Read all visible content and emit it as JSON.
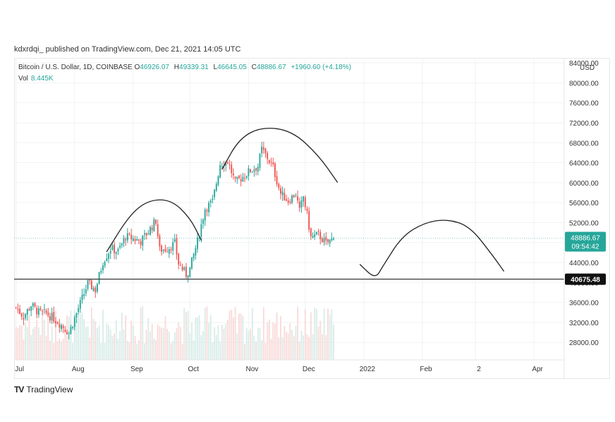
{
  "publisher": "kdxrdqi_ published on TradingView.com, Dec 21, 2021 14:05 UTC",
  "legend": {
    "symbol": "Bitcoin / U.S. Dollar, 1D, COINBASE",
    "open_label": "O",
    "open": "46926.07",
    "high_label": "H",
    "high": "49339.31",
    "low_label": "L",
    "low": "46645.05",
    "close_label": "C",
    "close": "48886.67",
    "change": "+1960.60 (+4.18%)",
    "vol_label": "Vol",
    "vol": "8.445K"
  },
  "brand": {
    "logo": "TV",
    "name": "TradingView"
  },
  "chart_data": {
    "type": "candlestick",
    "y_unit": "USD",
    "ylim": [
      24500,
      85000
    ],
    "y_ticks": [
      "84000.00",
      "80000.00",
      "76000.00",
      "72000.00",
      "68000.00",
      "64000.00",
      "60000.00",
      "56000.00",
      "52000.00",
      "48000.00",
      "44000.00",
      "40000.00",
      "36000.00",
      "32000.00",
      "28000.00"
    ],
    "x_ticks": [
      {
        "label": "Jul",
        "day": 0
      },
      {
        "label": "Aug",
        "day": 31
      },
      {
        "label": "Sep",
        "day": 62
      },
      {
        "label": "Oct",
        "day": 92
      },
      {
        "label": "Nov",
        "day": 123
      },
      {
        "label": "Dec",
        "day": 153
      },
      {
        "label": "2022",
        "day": 184
      },
      {
        "label": "Feb",
        "day": 215
      },
      {
        "label": "2",
        "day": 243
      },
      {
        "label": "Apr",
        "day": 274
      }
    ],
    "x_range_days": [
      -1,
      290
    ],
    "last_price": {
      "value": 48886.67,
      "label": "48886.67",
      "countdown": "09:54:42",
      "color": "#26a69a"
    },
    "horizontal_line": {
      "value": 40675.48,
      "label": "40675.48"
    },
    "candle_colors": {
      "up": "#26a69a",
      "down": "#ef5350"
    },
    "close_path": [
      [
        0,
        35000
      ],
      [
        4,
        33200
      ],
      [
        8,
        35500
      ],
      [
        12,
        34000
      ],
      [
        16,
        33800
      ],
      [
        20,
        32800
      ],
      [
        24,
        31500
      ],
      [
        28,
        29900
      ],
      [
        33,
        34800
      ],
      [
        38,
        39800
      ],
      [
        42,
        38500
      ],
      [
        46,
        44200
      ],
      [
        50,
        46800
      ],
      [
        54,
        46200
      ],
      [
        58,
        49200
      ],
      [
        62,
        48800
      ],
      [
        66,
        48300
      ],
      [
        70,
        50200
      ],
      [
        74,
        52400
      ],
      [
        76,
        46500
      ],
      [
        80,
        46800
      ],
      [
        84,
        47800
      ],
      [
        86,
        43800
      ],
      [
        90,
        41600
      ],
      [
        92,
        42800
      ],
      [
        96,
        48200
      ],
      [
        100,
        54800
      ],
      [
        104,
        56200
      ],
      [
        108,
        63800
      ],
      [
        112,
        64300
      ],
      [
        116,
        60000
      ],
      [
        120,
        61200
      ],
      [
        124,
        62500
      ],
      [
        128,
        63300
      ],
      [
        130,
        66700
      ],
      [
        133,
        65000
      ],
      [
        136,
        63000
      ],
      [
        140,
        57800
      ],
      [
        144,
        56400
      ],
      [
        148,
        57800
      ],
      [
        150,
        54200
      ],
      [
        152,
        57200
      ],
      [
        154,
        53500
      ],
      [
        156,
        49000
      ],
      [
        160,
        49600
      ],
      [
        164,
        47800
      ],
      [
        168,
        48886.67
      ]
    ],
    "volume_max": 22000,
    "drawings": [
      {
        "name": "arc-aug-sep",
        "points": [
          [
            48,
            46200
          ],
          [
            60,
            53500
          ],
          [
            70,
            56500
          ],
          [
            82,
            56600
          ],
          [
            92,
            53000
          ],
          [
            98,
            48500
          ]
        ]
      },
      {
        "name": "arc-oct-nov",
        "points": [
          [
            109,
            62700
          ],
          [
            118,
            68800
          ],
          [
            130,
            71200
          ],
          [
            146,
            70400
          ],
          [
            160,
            65500
          ],
          [
            170,
            60100
          ]
        ]
      },
      {
        "name": "projection-dip",
        "points": [
          [
            182,
            43600
          ],
          [
            190,
            40700
          ],
          [
            194,
            43200
          ]
        ]
      },
      {
        "name": "projection-arc",
        "points": [
          [
            194,
            43200
          ],
          [
            204,
            49200
          ],
          [
            216,
            52000
          ],
          [
            228,
            52700
          ],
          [
            240,
            51300
          ],
          [
            252,
            45500
          ],
          [
            258,
            42300
          ]
        ]
      }
    ]
  }
}
